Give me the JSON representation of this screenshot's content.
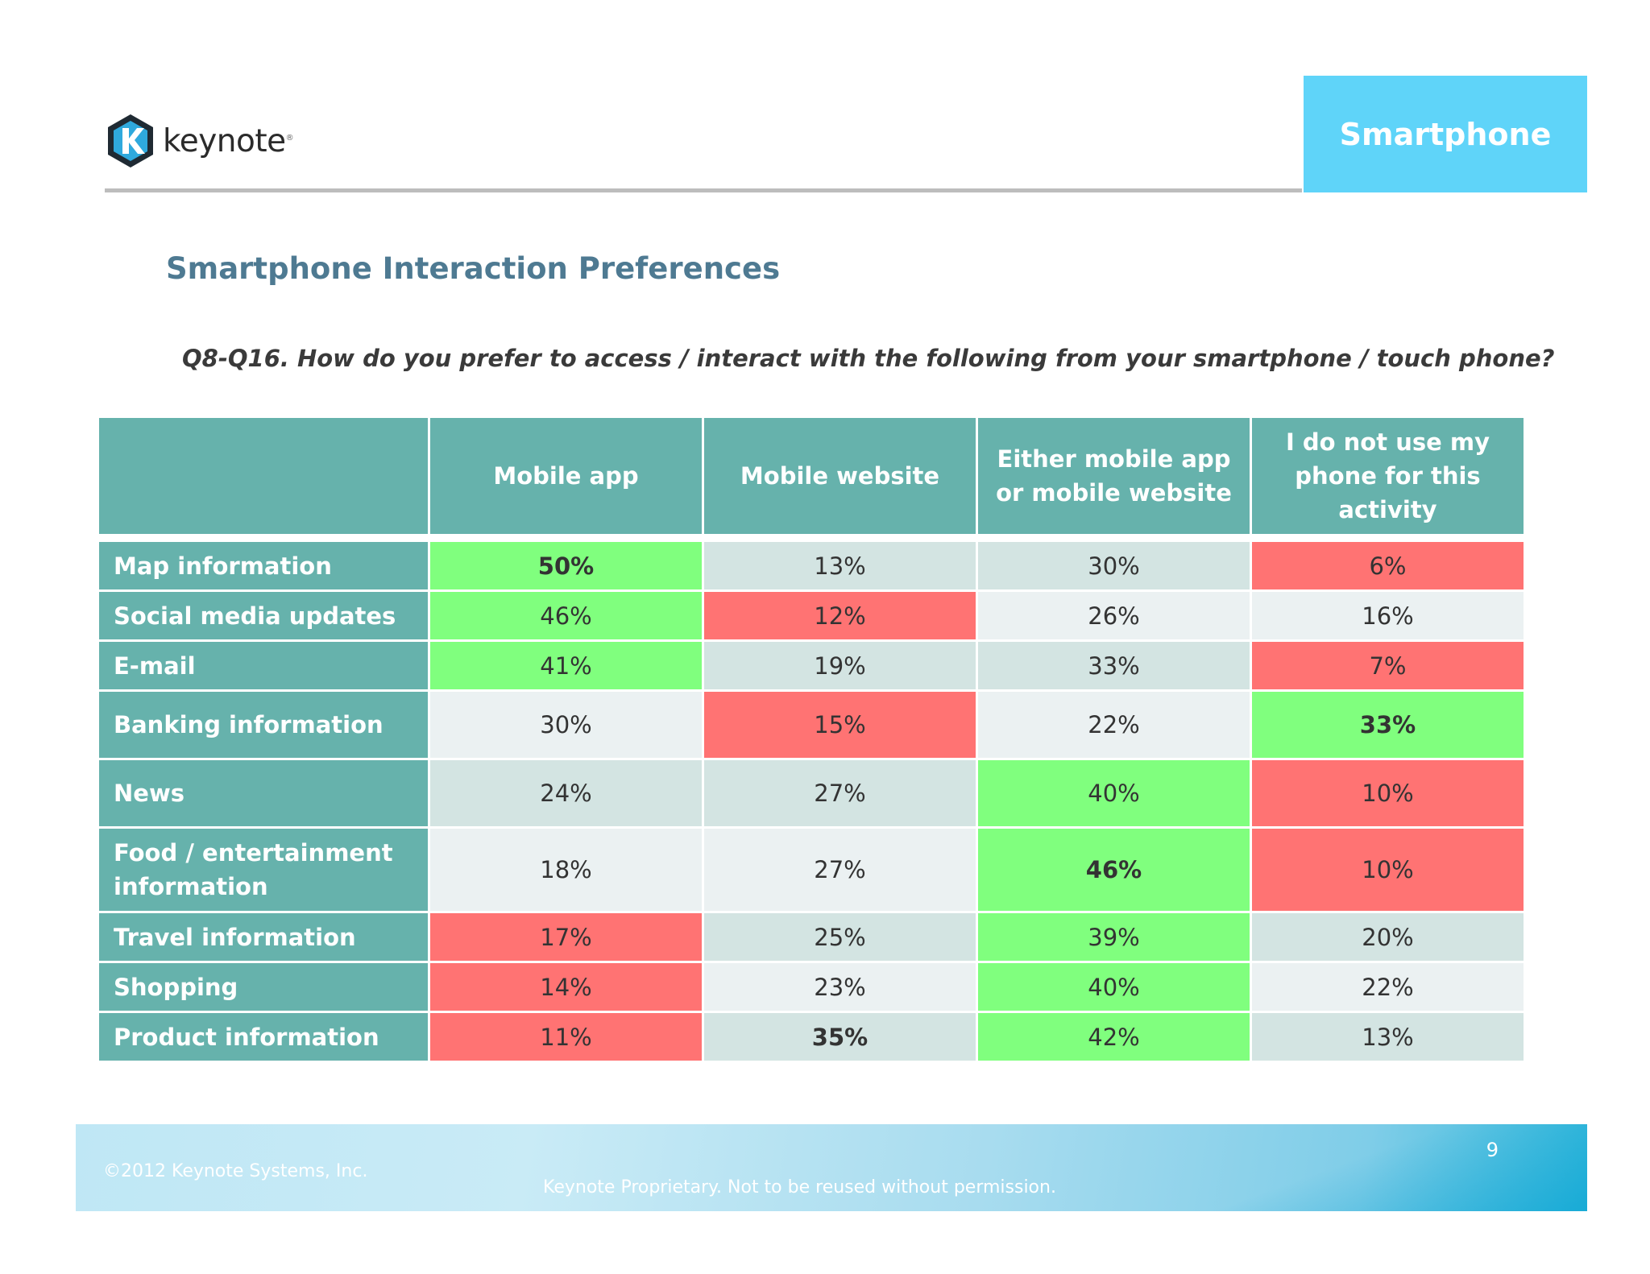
{
  "brand": {
    "name": "keynote",
    "reg_mark": "®"
  },
  "section_badge": "Smartphone",
  "title": "Smartphone Interaction Preferences",
  "question": "Q8-Q16. How do you prefer to access / interact with the following from your smartphone / touch phone?",
  "table": {
    "columns": [
      "",
      "Mobile app",
      "Mobile website",
      "Either mobile app or  mobile website",
      "I do not use my phone for this activity"
    ],
    "rows": [
      {
        "label": "Map information",
        "cells": [
          {
            "value": "50%",
            "color": "#80ff7e",
            "bold": true
          },
          {
            "value": "13%",
            "color": "#d3e4e2",
            "bold": false
          },
          {
            "value": "30%",
            "color": "#d3e4e2",
            "bold": false
          },
          {
            "value": "6%",
            "color": "#ff7373",
            "bold": false
          }
        ]
      },
      {
        "label": "Social media updates",
        "cells": [
          {
            "value": "46%",
            "color": "#80ff7e",
            "bold": false
          },
          {
            "value": "12%",
            "color": "#ff7373",
            "bold": false
          },
          {
            "value": "26%",
            "color": "#ebf1f2",
            "bold": false
          },
          {
            "value": "16%",
            "color": "#ebf1f2",
            "bold": false
          }
        ]
      },
      {
        "label": "E-mail",
        "cells": [
          {
            "value": "41%",
            "color": "#80ff7e",
            "bold": false
          },
          {
            "value": "19%",
            "color": "#d3e4e2",
            "bold": false
          },
          {
            "value": "33%",
            "color": "#d3e4e2",
            "bold": false
          },
          {
            "value": "7%",
            "color": "#ff7373",
            "bold": false
          }
        ]
      },
      {
        "label": "Banking information",
        "cells": [
          {
            "value": "30%",
            "color": "#ebf1f2",
            "bold": false
          },
          {
            "value": "15%",
            "color": "#ff7373",
            "bold": false
          },
          {
            "value": "22%",
            "color": "#ebf1f2",
            "bold": false
          },
          {
            "value": "33%",
            "color": "#80ff7e",
            "bold": true
          }
        ]
      },
      {
        "label": "News",
        "cells": [
          {
            "value": "24%",
            "color": "#d3e4e2",
            "bold": false
          },
          {
            "value": "27%",
            "color": "#d3e4e2",
            "bold": false
          },
          {
            "value": "40%",
            "color": "#80ff7e",
            "bold": false
          },
          {
            "value": "10%",
            "color": "#ff7373",
            "bold": false
          }
        ]
      },
      {
        "label": "Food / entertainment information",
        "cells": [
          {
            "value": "18%",
            "color": "#ebf1f2",
            "bold": false
          },
          {
            "value": "27%",
            "color": "#ebf1f2",
            "bold": false
          },
          {
            "value": "46%",
            "color": "#80ff7e",
            "bold": true
          },
          {
            "value": "10%",
            "color": "#ff7373",
            "bold": false
          }
        ]
      },
      {
        "label": "Travel information",
        "cells": [
          {
            "value": "17%",
            "color": "#ff7373",
            "bold": false
          },
          {
            "value": "25%",
            "color": "#d3e4e2",
            "bold": false
          },
          {
            "value": "39%",
            "color": "#80ff7e",
            "bold": false
          },
          {
            "value": "20%",
            "color": "#d3e4e2",
            "bold": false
          }
        ]
      },
      {
        "label": "Shopping",
        "cells": [
          {
            "value": "14%",
            "color": "#ff7373",
            "bold": false
          },
          {
            "value": "23%",
            "color": "#ebf1f2",
            "bold": false
          },
          {
            "value": "40%",
            "color": "#80ff7e",
            "bold": false
          },
          {
            "value": "22%",
            "color": "#ebf1f2",
            "bold": false
          }
        ]
      },
      {
        "label": "Product information",
        "cells": [
          {
            "value": "11%",
            "color": "#ff7373",
            "bold": false
          },
          {
            "value": "35%",
            "color": "#d3e4e2",
            "bold": true
          },
          {
            "value": "42%",
            "color": "#80ff7e",
            "bold": false
          },
          {
            "value": "13%",
            "color": "#d3e4e2",
            "bold": false
          }
        ]
      }
    ]
  },
  "footer": {
    "copyright": "©2012 Keynote Systems, Inc.",
    "proprietary": "Keynote Proprietary. Not to be reused without permission.",
    "page_number": "9"
  },
  "colors": {
    "header_teal": "#66b2ac",
    "badge_blue": "#5fd4f9",
    "title_blue": "#4e7a92",
    "cell_green": "#80ff7e",
    "cell_red": "#ff7373",
    "cell_gray": "#d3e4e2",
    "cell_light": "#ebf1f2"
  }
}
